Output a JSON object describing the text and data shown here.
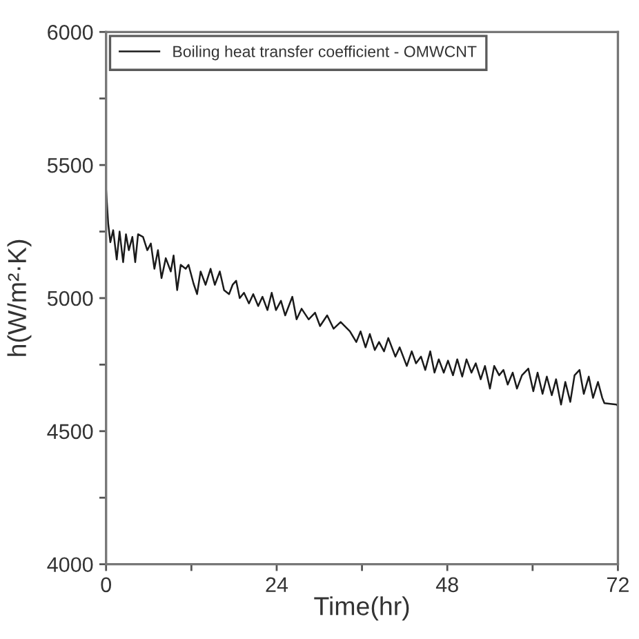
{
  "chart_data": {
    "type": "line",
    "xlabel": "Time(hr)",
    "ylabel": "h(W/m²·K)",
    "xlim": [
      0,
      72
    ],
    "ylim": [
      4000,
      6000
    ],
    "xticks": [
      0,
      {
        "value": 12,
        "label": null
      },
      24,
      {
        "value": 36,
        "label": null
      },
      48,
      {
        "value": 60,
        "label": null
      },
      72
    ],
    "yticks": [
      4000,
      {
        "value": 4250,
        "label": null
      },
      4500,
      {
        "value": 4750,
        "label": null
      },
      5000,
      {
        "value": 5250,
        "label": null
      },
      5500,
      {
        "value": 5750,
        "label": null
      },
      6000
    ],
    "legend": "top left",
    "line_style": "solid",
    "marker": "none",
    "series": [
      {
        "name": "Boiling heat transfer coefficient - OMWCNT",
        "color": "#1a1a1a",
        "x": [
          0,
          0.3,
          0.6,
          1.0,
          1.5,
          1.9,
          2.4,
          2.8,
          3.2,
          3.7,
          4.1,
          4.5,
          5.2,
          5.8,
          6.3,
          6.8,
          7.3,
          7.8,
          8.4,
          9.1,
          9.5,
          10.0,
          10.5,
          11.2,
          11.6,
          12.3,
          12.8,
          13.3,
          14.0,
          14.7,
          15.3,
          16.0,
          16.6,
          17.3,
          17.8,
          18.3,
          18.8,
          19.4,
          20.1,
          20.7,
          21.4,
          22.0,
          22.7,
          23.3,
          23.9,
          24.6,
          25.2,
          26.2,
          26.8,
          27.5,
          28.5,
          29.4,
          30.1,
          31.1,
          32.0,
          33.0,
          34.3,
          35.2,
          35.8,
          36.5,
          37.1,
          37.8,
          38.4,
          39.1,
          39.7,
          40.7,
          41.3,
          42.3,
          43.0,
          43.6,
          44.3,
          44.9,
          45.6,
          46.2,
          46.8,
          47.5,
          48.1,
          48.8,
          49.4,
          50.1,
          50.7,
          51.4,
          52.0,
          52.7,
          53.3,
          54.0,
          54.6,
          55.3,
          55.9,
          56.5,
          57.2,
          57.8,
          58.5,
          59.4,
          60.1,
          60.7,
          61.4,
          62.0,
          62.7,
          63.3,
          64.0,
          64.6,
          65.3,
          65.9,
          66.6,
          67.2,
          67.9,
          68.5,
          69.2,
          69.8,
          70.1,
          71.8,
          72
        ],
        "values": [
          5410,
          5280,
          5210,
          5255,
          5145,
          5250,
          5135,
          5240,
          5180,
          5230,
          5135,
          5240,
          5230,
          5180,
          5205,
          5110,
          5180,
          5075,
          5150,
          5100,
          5160,
          5030,
          5125,
          5110,
          5125,
          5055,
          5015,
          5100,
          5050,
          5110,
          5050,
          5100,
          5030,
          5015,
          5050,
          5065,
          5000,
          5020,
          4980,
          5015,
          4970,
          5005,
          4955,
          5020,
          4955,
          4990,
          4935,
          5005,
          4920,
          4960,
          4920,
          4945,
          4895,
          4935,
          4885,
          4910,
          4875,
          4835,
          4875,
          4815,
          4865,
          4805,
          4835,
          4800,
          4850,
          4780,
          4815,
          4745,
          4800,
          4755,
          4780,
          4730,
          4800,
          4720,
          4770,
          4720,
          4765,
          4710,
          4770,
          4705,
          4770,
          4720,
          4755,
          4695,
          4745,
          4660,
          4745,
          4710,
          4730,
          4675,
          4720,
          4660,
          4710,
          4735,
          4650,
          4720,
          4640,
          4705,
          4635,
          4695,
          4600,
          4685,
          4610,
          4710,
          4730,
          4640,
          4705,
          4625,
          4685,
          4625,
          4605,
          4600,
          4595
        ]
      }
    ]
  }
}
